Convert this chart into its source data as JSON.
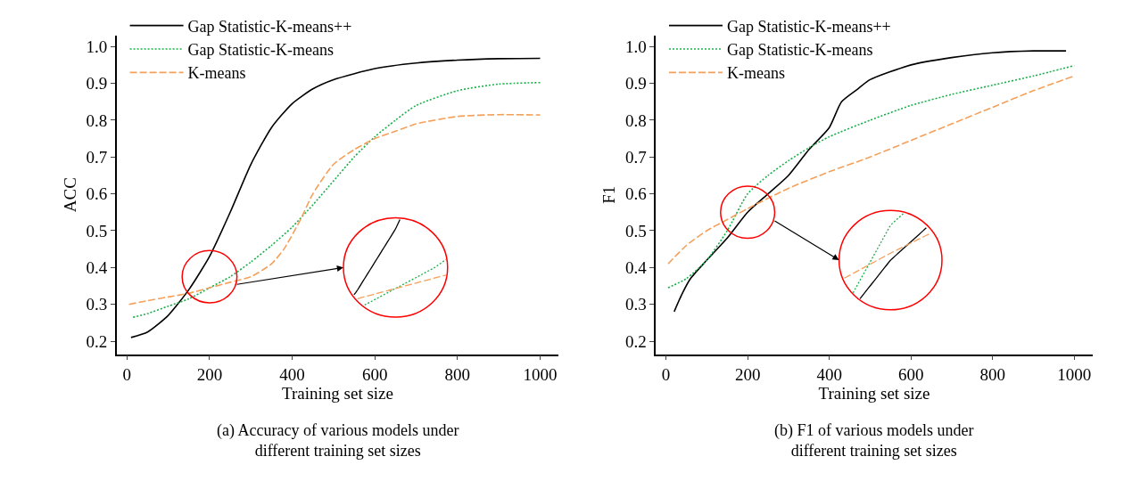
{
  "chart_data": [
    {
      "type": "line",
      "xlabel": "Training set size",
      "ylabel": "ACC",
      "annotations": [
        "(a) Accuracy of various models under different training set sizes"
      ],
      "xlim": [
        -25,
        1045
      ],
      "ylim": [
        0.165,
        1.03
      ],
      "xticks": [
        0,
        200,
        400,
        600,
        800,
        1000
      ],
      "yticks": [
        0.2,
        0.3,
        0.4,
        0.5,
        0.6,
        0.7,
        0.8,
        0.9,
        {
          "value": 1.0,
          "label": "1.0"
        }
      ],
      "legend": "top left",
      "series": [
        {
          "name": "Gap Statistic-K-means++",
          "color": "#000000",
          "line_style": "solid",
          "x": [
            10,
            50,
            100,
            150,
            200,
            250,
            300,
            350,
            400,
            450,
            500,
            600,
            700,
            800,
            900,
            1000
          ],
          "values": [
            0.21,
            0.225,
            0.27,
            0.34,
            0.43,
            0.55,
            0.68,
            0.78,
            0.845,
            0.885,
            0.91,
            0.94,
            0.955,
            0.963,
            0.967,
            0.968
          ]
        },
        {
          "name": "Gap Statistic-K-means",
          "color": "#1aaf4b",
          "line_style": "dotted",
          "x": [
            15,
            50,
            100,
            150,
            200,
            250,
            300,
            350,
            400,
            450,
            500,
            550,
            600,
            650,
            700,
            800,
            900,
            1000
          ],
          "values": [
            0.265,
            0.275,
            0.295,
            0.315,
            0.345,
            0.375,
            0.415,
            0.46,
            0.51,
            0.57,
            0.635,
            0.7,
            0.755,
            0.8,
            0.84,
            0.88,
            0.898,
            0.902
          ]
        },
        {
          "name": "K-means",
          "color": "#f5a05a",
          "line_style": "dashed",
          "x": [
            5,
            50,
            100,
            150,
            200,
            250,
            300,
            350,
            380,
            420,
            450,
            500,
            550,
            600,
            650,
            700,
            800,
            900,
            1000
          ],
          "values": [
            0.3,
            0.31,
            0.32,
            0.33,
            0.345,
            0.36,
            0.375,
            0.41,
            0.45,
            0.53,
            0.6,
            0.68,
            0.72,
            0.75,
            0.77,
            0.79,
            0.81,
            0.815,
            0.814
          ]
        }
      ]
    },
    {
      "type": "line",
      "xlabel": "Training set size",
      "ylabel": "F1",
      "annotations": [
        "(b) F1 of various models under different training set sizes"
      ],
      "xlim": [
        -25,
        1045
      ],
      "ylim": [
        0.165,
        1.03
      ],
      "xticks": [
        0,
        200,
        400,
        600,
        800,
        1000
      ],
      "yticks": [
        0.2,
        0.3,
        0.4,
        0.5,
        0.6,
        0.7,
        0.8,
        0.9,
        {
          "value": 1.0,
          "label": "1.0"
        }
      ],
      "legend": "top left",
      "series": [
        {
          "name": "Gap Statistic-K-means++",
          "color": "#000000",
          "line_style": "solid",
          "x": [
            20,
            40,
            60,
            100,
            150,
            200,
            250,
            300,
            350,
            400,
            430,
            470,
            500,
            600,
            700,
            800,
            900,
            980
          ],
          "values": [
            0.28,
            0.33,
            0.37,
            0.42,
            0.48,
            0.55,
            0.6,
            0.65,
            0.72,
            0.78,
            0.85,
            0.885,
            0.91,
            0.95,
            0.97,
            0.983,
            0.988,
            0.988
          ]
        },
        {
          "name": "Gap Statistic-K-means",
          "color": "#1aaf4b",
          "line_style": "dotted",
          "x": [
            5,
            50,
            100,
            150,
            200,
            250,
            300,
            350,
            400,
            500,
            600,
            700,
            800,
            900,
            1000
          ],
          "values": [
            0.345,
            0.37,
            0.42,
            0.5,
            0.6,
            0.65,
            0.69,
            0.725,
            0.755,
            0.8,
            0.84,
            0.87,
            0.895,
            0.92,
            0.948
          ]
        },
        {
          "name": "K-means",
          "color": "#f5a05a",
          "line_style": "dashed",
          "x": [
            5,
            50,
            100,
            150,
            200,
            300,
            400,
            500,
            600,
            700,
            800,
            900,
            1000
          ],
          "values": [
            0.41,
            0.46,
            0.5,
            0.53,
            0.56,
            0.615,
            0.66,
            0.7,
            0.745,
            0.79,
            0.835,
            0.88,
            0.92
          ]
        }
      ]
    }
  ]
}
